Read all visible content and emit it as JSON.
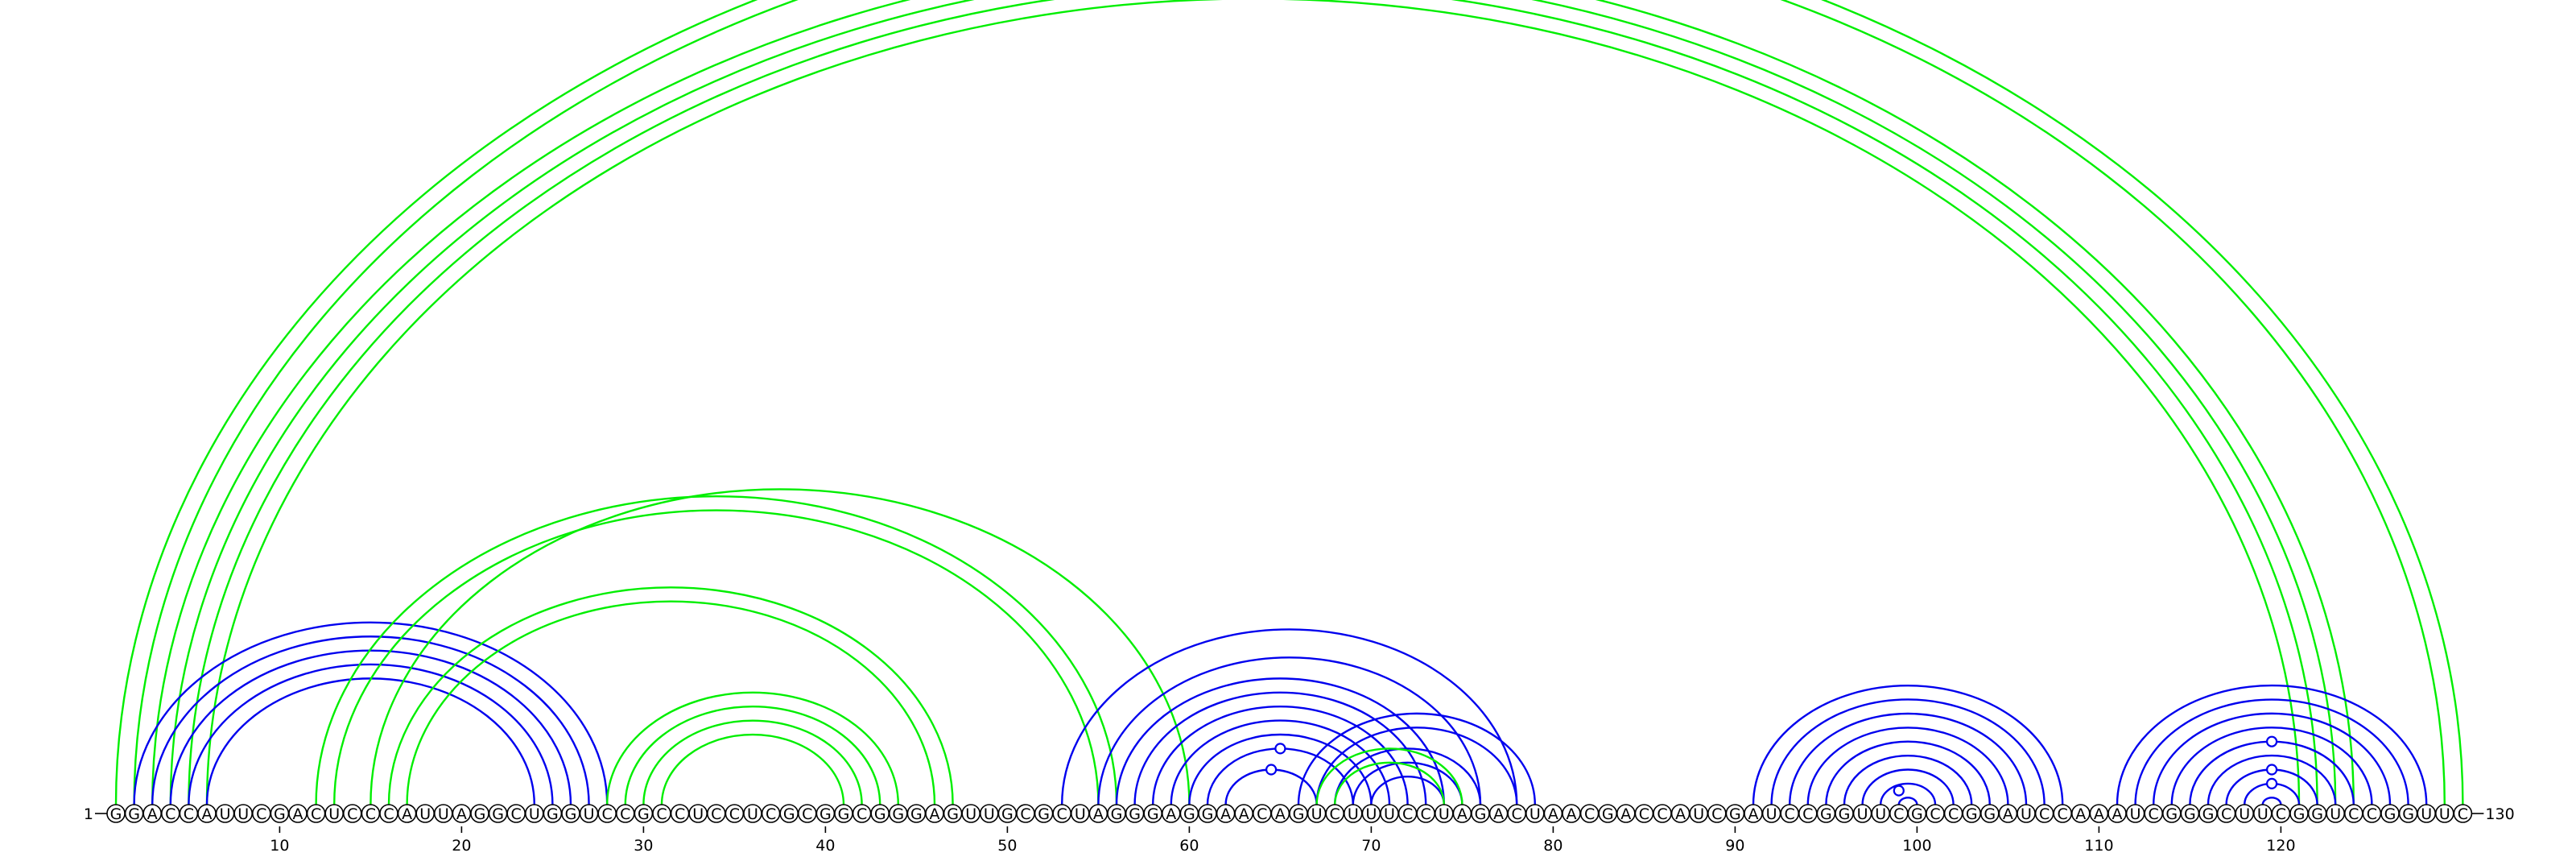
{
  "sequence": "GGACCAUUCGACUCCCAUUAGGCUGGUCCGCCUCCUCGCGGCGGGAGUUGCGCUAGGGAGGAACAGUCUUUCCUAGACUAACGACCAUCGAUCCGGUUCGCCGGAUCCAAAUCGGGCUUCGGUCCGGUUC",
  "start_label": "1",
  "end_label": "130",
  "tick_labels": [
    "10",
    "20",
    "30",
    "40",
    "50",
    "60",
    "70",
    "80",
    "90",
    "100",
    "110",
    "120"
  ],
  "colors": {
    "green": "#00ee00",
    "blue": "#0000ee"
  },
  "arcs": [
    {
      "color": "green",
      "pairs": [
        [
          1,
          130
        ],
        [
          2,
          129
        ]
      ],
      "marker": true
    },
    {
      "color": "green",
      "pairs": [
        [
          3,
          124
        ],
        [
          4,
          123
        ],
        [
          5,
          122
        ],
        [
          6,
          121
        ]
      ]
    },
    {
      "color": "blue",
      "pairs": [
        [
          2,
          28
        ],
        [
          3,
          27
        ],
        [
          4,
          26
        ],
        [
          5,
          25
        ],
        [
          6,
          24
        ]
      ]
    },
    {
      "color": "green",
      "pairs": [
        [
          12,
          56
        ],
        [
          13,
          55
        ]
      ]
    },
    {
      "color": "green",
      "pairs": [
        [
          15,
          60
        ]
      ]
    },
    {
      "color": "green",
      "pairs": [
        [
          16,
          47
        ],
        [
          17,
          46
        ]
      ]
    },
    {
      "color": "green",
      "pairs": [
        [
          28,
          44
        ],
        [
          29,
          43
        ],
        [
          30,
          42
        ],
        [
          31,
          41
        ]
      ]
    },
    {
      "color": "blue",
      "pairs": [
        [
          53,
          78
        ],
        [
          55,
          76
        ],
        [
          56,
          74
        ],
        [
          57,
          73
        ],
        [
          58,
          72
        ],
        [
          59,
          71
        ],
        [
          60,
          70
        ],
        [
          61,
          69
        ],
        [
          62,
          67
        ]
      ],
      "markers": [
        [
          61,
          69
        ],
        [
          62,
          67
        ]
      ]
    },
    {
      "color": "blue",
      "pairs": [
        [
          66,
          79
        ],
        [
          67,
          78
        ],
        [
          68,
          76
        ],
        [
          69,
          75
        ],
        [
          70,
          74
        ]
      ]
    },
    {
      "color": "green",
      "pairs": [
        [
          67,
          75
        ],
        [
          68,
          74
        ]
      ]
    },
    {
      "color": "blue",
      "pairs": [
        [
          91,
          108
        ],
        [
          92,
          107
        ],
        [
          93,
          106
        ],
        [
          94,
          105
        ],
        [
          95,
          104
        ],
        [
          96,
          103
        ],
        [
          97,
          102
        ],
        [
          98,
          101
        ],
        [
          99,
          100
        ]
      ],
      "markers": [
        [
          98,
          100
        ]
      ]
    },
    {
      "color": "blue",
      "pairs": [
        [
          111,
          128
        ],
        [
          112,
          127
        ],
        [
          113,
          126
        ],
        [
          114,
          125
        ],
        [
          115,
          124
        ],
        [
          116,
          123
        ],
        [
          117,
          122
        ],
        [
          118,
          121
        ],
        [
          119,
          120
        ]
      ],
      "markers": [
        [
          115,
          124
        ],
        [
          117,
          122
        ],
        [
          118,
          121
        ]
      ]
    }
  ]
}
